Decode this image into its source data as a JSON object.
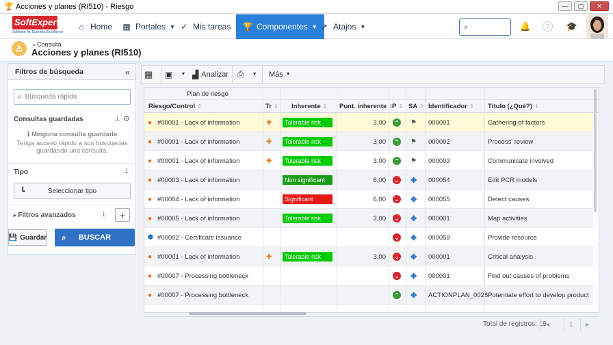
{
  "window": {
    "title": "Acciones y planes (RI510) - Riesgo",
    "controls": [
      "—",
      "▢",
      "✕"
    ]
  },
  "logo": {
    "name": "SoftExpert",
    "tagline": "Software for Business Excellence"
  },
  "nav": {
    "items": [
      {
        "label": "Home",
        "icon": "home-icon"
      },
      {
        "label": "Portales",
        "icon": "portals-icon"
      },
      {
        "label": "Mis tareas",
        "icon": "check-icon"
      },
      {
        "label": "Componentes",
        "icon": "trophy-icon"
      },
      {
        "label": "Atajos",
        "icon": "rocket-icon"
      }
    ],
    "search_placeholder": ""
  },
  "page": {
    "breadcrumb": "Consulta",
    "title": "Acciones y planes (RI510)"
  },
  "filters": {
    "header": "Filtros de búsqueda",
    "quick_search_placeholder": "Búsqueda rápida",
    "saved_title": "Consultas guardadas",
    "no_saved": "Ninguna consulta guardada",
    "no_saved_hint": "Tenga acceso rápido a sus búsquedas guardando una consulta.",
    "tipo_title": "Tipo",
    "select_type": "Seleccionar tipo",
    "advanced": "Filtros avanzados",
    "save": "Guardar",
    "search": "BUSCAR"
  },
  "toolbar": {
    "analyze": "Analizar",
    "more": "Más"
  },
  "grid": {
    "group_header": "Plan de riesgo",
    "columns": [
      "Riesgo/Control",
      "Tr",
      "Inherente",
      "Punt. inherente",
      "P",
      "SA",
      "Identificador",
      "Título (¿Qué?)"
    ],
    "rows": [
      {
        "risk": "#00001 - Lack of information",
        "type": "fire",
        "tr": true,
        "inherent": "Tolerable risk",
        "inherent_color": "#00cc00",
        "score": "3,00",
        "p": "green",
        "sa": "flag",
        "id": "000001",
        "title": "Gathering of factors",
        "selected": true
      },
      {
        "risk": "#00001 - Lack of information",
        "type": "fire",
        "tr": true,
        "inherent": "Tolerable risk",
        "inherent_color": "#00cc00",
        "score": "3,00",
        "p": "green",
        "sa": "flag",
        "id": "000002",
        "title": "Process' review"
      },
      {
        "risk": "#00001 - Lack of information",
        "type": "fire",
        "tr": true,
        "inherent": "Tolerable risk",
        "inherent_color": "#00cc00",
        "score": "3,00",
        "p": "green",
        "sa": "flag",
        "id": "000003",
        "title": "Communicate involved"
      },
      {
        "risk": "#00003 - Lack of information",
        "type": "fire",
        "tr": false,
        "inherent": "Non significant",
        "inherent_color": "#1a9e1a",
        "score": "6,00",
        "p": "red",
        "sa": "cross",
        "id": "000054",
        "title": "Edit PCR models"
      },
      {
        "risk": "#00004 - Lack of information",
        "type": "fire",
        "tr": false,
        "inherent": "Significant",
        "inherent_color": "#e61919",
        "score": "6,00",
        "p": "red",
        "sa": "cross",
        "id": "000055",
        "title": "Detect causes"
      },
      {
        "risk": "#00005 - Lack of information",
        "type": "fire",
        "tr": false,
        "inherent": "Tolerable risk",
        "inherent_color": "#00cc00",
        "score": "3,00",
        "p": "red",
        "sa": "cross",
        "id": "000001",
        "title": "Map activities"
      },
      {
        "risk": "#00002 - Certificate issuance",
        "type": "cert",
        "tr": false,
        "inherent": "",
        "inherent_color": "",
        "score": "",
        "p": "red",
        "sa": "cross",
        "id": "000059",
        "title": "Provide resource"
      },
      {
        "risk": "#00001 - Lack of information",
        "type": "fire",
        "tr": true,
        "inherent": "Tolerable risk",
        "inherent_color": "#00cc00",
        "score": "3,00",
        "p": "red",
        "sa": "cross",
        "id": "000001",
        "title": "Critical analysis"
      },
      {
        "risk": "#00007 - Processing bottleneck",
        "type": "fire",
        "tr": false,
        "inherent": "",
        "inherent_color": "",
        "score": "",
        "p": "red",
        "sa": "cross",
        "id": "000001",
        "title": "Find out causes of problems"
      },
      {
        "risk": "#00007 - Processing bottleneck",
        "type": "fire",
        "tr": false,
        "inherent": "",
        "inherent_color": "",
        "score": "",
        "p": "green",
        "sa": "cross",
        "id": "ACTIONPLAN_0028",
        "title": "Potentiate effort to develop product"
      }
    ],
    "total_label": "Total de registros: 19",
    "page": "1"
  }
}
